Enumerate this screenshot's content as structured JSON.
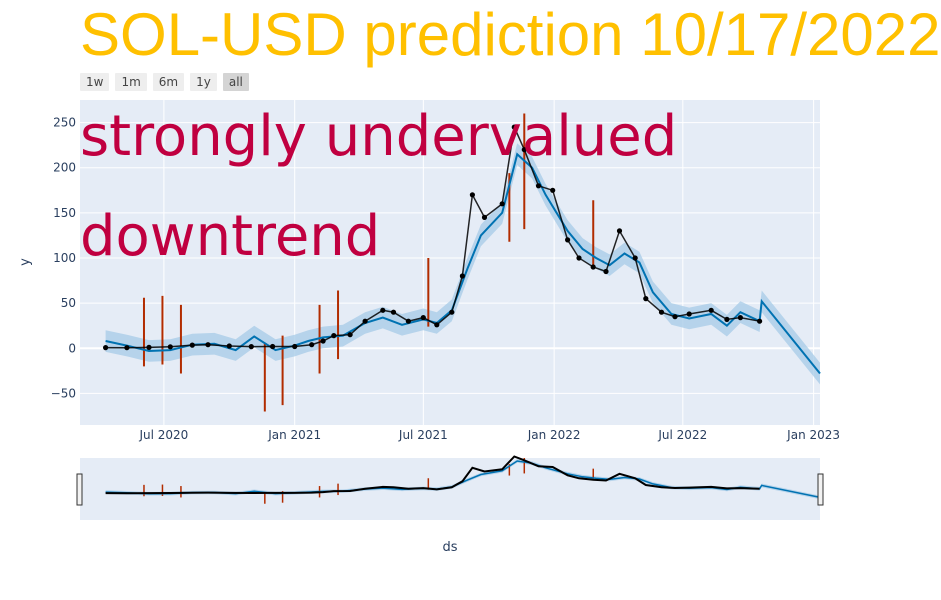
{
  "title": "SOL-USD prediction 10/17/2022",
  "range_buttons": [
    "1w",
    "1m",
    "6m",
    "1y",
    "all"
  ],
  "active_range": "all",
  "annotations": [
    "strongly undervalued",
    "downtrend"
  ],
  "colors": {
    "title": "#FFC000",
    "annotation": "#C00040",
    "plot_bg": "#E5ECF6",
    "forecast_line": "#0072B2",
    "uncertainty_band": "#A6CBE7",
    "observed": "#000000",
    "changepoints": "#B22C00"
  },
  "chart_data": {
    "type": "line",
    "xlabel": "ds",
    "ylabel": "y",
    "xlim": [
      "2020-03-05",
      "2023-01-10"
    ],
    "ylim": [
      -85,
      275
    ],
    "x_ticks": [
      "Jul 2020",
      "Jan 2021",
      "Jul 2021",
      "Jan 2022",
      "Jul 2022",
      "Jan 2023"
    ],
    "x_tick_dates": [
      "2020-07-01",
      "2021-01-01",
      "2021-07-01",
      "2022-01-01",
      "2022-07-01",
      "2023-01-01"
    ],
    "y_ticks": [
      -50,
      0,
      50,
      100,
      150,
      200,
      250
    ],
    "grid": true,
    "rangeslider": true,
    "series": [
      {
        "kind": "observed",
        "points": [
          [
            "2020-04-10",
            0.7
          ],
          [
            "2020-05-10",
            0.6
          ],
          [
            "2020-06-10",
            1.0
          ],
          [
            "2020-07-10",
            1.6
          ],
          [
            "2020-08-10",
            3.5
          ],
          [
            "2020-09-01",
            4.0
          ],
          [
            "2020-10-01",
            2.5
          ],
          [
            "2020-11-01",
            1.8
          ],
          [
            "2020-12-01",
            2.0
          ],
          [
            "2021-01-01",
            2.0
          ],
          [
            "2021-01-25",
            4.0
          ],
          [
            "2021-02-10",
            8.0
          ],
          [
            "2021-02-25",
            14.0
          ],
          [
            "2021-03-20",
            15.0
          ],
          [
            "2021-04-10",
            30.0
          ],
          [
            "2021-05-05",
            42.0
          ],
          [
            "2021-05-20",
            40.0
          ],
          [
            "2021-06-10",
            30.0
          ],
          [
            "2021-07-01",
            34.0
          ],
          [
            "2021-07-20",
            26.0
          ],
          [
            "2021-08-10",
            40.0
          ],
          [
            "2021-08-25",
            80.0
          ],
          [
            "2021-09-08",
            170.0
          ],
          [
            "2021-09-25",
            145.0
          ],
          [
            "2021-10-20",
            160.0
          ],
          [
            "2021-11-06",
            245.0
          ],
          [
            "2021-11-20",
            220.0
          ],
          [
            "2021-12-10",
            180.0
          ],
          [
            "2021-12-30",
            175.0
          ],
          [
            "2022-01-20",
            120.0
          ],
          [
            "2022-02-05",
            100.0
          ],
          [
            "2022-02-25",
            90.0
          ],
          [
            "2022-03-15",
            85.0
          ],
          [
            "2022-04-03",
            130.0
          ],
          [
            "2022-04-25",
            100.0
          ],
          [
            "2022-05-10",
            55.0
          ],
          [
            "2022-06-01",
            40.0
          ],
          [
            "2022-06-20",
            35.0
          ],
          [
            "2022-07-10",
            38.0
          ],
          [
            "2022-08-10",
            42.0
          ],
          [
            "2022-09-01",
            32.0
          ],
          [
            "2022-09-20",
            34.0
          ],
          [
            "2022-10-17",
            30.0
          ]
        ]
      },
      {
        "kind": "forecast",
        "points": [
          [
            "2020-04-10",
            8.0
          ],
          [
            "2020-05-10",
            3.0
          ],
          [
            "2020-06-10",
            -3.0
          ],
          [
            "2020-07-10",
            -2.0
          ],
          [
            "2020-08-10",
            4.0
          ],
          [
            "2020-09-10",
            5.0
          ],
          [
            "2020-10-10",
            -2.0
          ],
          [
            "2020-11-05",
            13.0
          ],
          [
            "2020-12-05",
            -2.0
          ],
          [
            "2021-01-01",
            3.0
          ],
          [
            "2021-01-20",
            8.0
          ],
          [
            "2021-02-10",
            12.0
          ],
          [
            "2021-03-10",
            14.0
          ],
          [
            "2021-04-10",
            28.0
          ],
          [
            "2021-05-05",
            34.0
          ],
          [
            "2021-06-01",
            26.0
          ],
          [
            "2021-07-01",
            32.0
          ],
          [
            "2021-07-20",
            28.0
          ],
          [
            "2021-08-10",
            42.0
          ],
          [
            "2021-09-01",
            88.0
          ],
          [
            "2021-09-20",
            125.0
          ],
          [
            "2021-10-20",
            150.0
          ],
          [
            "2021-11-10",
            215.0
          ],
          [
            "2021-12-01",
            200.0
          ],
          [
            "2021-12-20",
            170.0
          ],
          [
            "2022-01-20",
            130.0
          ],
          [
            "2022-02-10",
            110.0
          ],
          [
            "2022-03-01",
            100.0
          ],
          [
            "2022-03-20",
            92.0
          ],
          [
            "2022-04-10",
            105.0
          ],
          [
            "2022-05-01",
            95.0
          ],
          [
            "2022-05-20",
            62.0
          ],
          [
            "2022-06-15",
            38.0
          ],
          [
            "2022-07-10",
            33.0
          ],
          [
            "2022-08-10",
            38.0
          ],
          [
            "2022-09-01",
            25.0
          ],
          [
            "2022-09-20",
            40.0
          ],
          [
            "2022-10-17",
            30.0
          ],
          [
            "2022-10-20",
            52.0
          ],
          [
            "2023-01-10",
            -28.0
          ]
        ],
        "band_half_width": 12
      }
    ],
    "changepoints": [
      {
        "date": "2020-06-03",
        "low": -20,
        "high": 56
      },
      {
        "date": "2020-06-29",
        "low": -18,
        "high": 58
      },
      {
        "date": "2020-07-25",
        "low": -28,
        "high": 48
      },
      {
        "date": "2020-11-20",
        "low": -70,
        "high": 6
      },
      {
        "date": "2020-12-15",
        "low": -63,
        "high": 14
      },
      {
        "date": "2021-02-05",
        "low": -28,
        "high": 48
      },
      {
        "date": "2021-03-03",
        "low": -12,
        "high": 64
      },
      {
        "date": "2021-07-08",
        "low": 24,
        "high": 100
      },
      {
        "date": "2021-10-30",
        "low": 118,
        "high": 194
      },
      {
        "date": "2021-11-20",
        "low": 132,
        "high": 260
      },
      {
        "date": "2022-02-25",
        "low": 88,
        "high": 164
      }
    ]
  }
}
